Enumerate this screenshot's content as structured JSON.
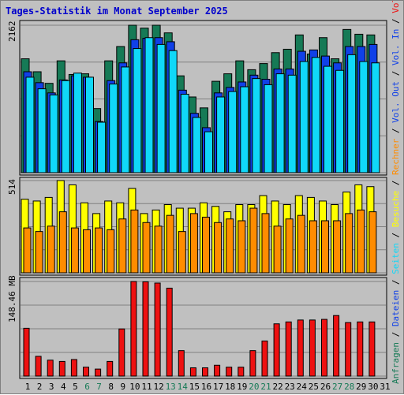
{
  "chart_data": [
    {
      "type": "bar",
      "title": "Tages-Statistik im Monat September 2025",
      "ylabel_top": "2162",
      "ymax": 2162,
      "categories": [
        "1",
        "2",
        "3",
        "4",
        "5",
        "6",
        "7",
        "8",
        "9",
        "10",
        "11",
        "12",
        "13",
        "14",
        "15",
        "16",
        "17",
        "18",
        "19",
        "20",
        "21",
        "22",
        "23",
        "24",
        "25",
        "26",
        "27",
        "28",
        "29",
        "30",
        "31"
      ],
      "weekend_days": [
        "6",
        "7",
        "13",
        "14",
        "20",
        "21",
        "27",
        "28"
      ],
      "series": [
        {
          "name": "Anfragen",
          "color": "#167a56",
          "values": [
            1670,
            1480,
            1310,
            1640,
            1440,
            1450,
            940,
            1640,
            1850,
            2162,
            2120,
            2162,
            2050,
            1420,
            1110,
            950,
            1340,
            1450,
            1640,
            1510,
            1600,
            1760,
            1810,
            2020,
            1740,
            1980,
            1670,
            2100,
            2030,
            2020,
            0
          ]
        },
        {
          "name": "Dateien",
          "color": "#1040e8",
          "values": [
            1480,
            1320,
            1170,
            1360,
            1420,
            1400,
            750,
            1350,
            1610,
            1950,
            1970,
            1980,
            1920,
            1210,
            870,
            660,
            1170,
            1250,
            1330,
            1430,
            1370,
            1520,
            1520,
            1780,
            1800,
            1710,
            1610,
            1850,
            1850,
            1880,
            0
          ]
        },
        {
          "name": "Seiten",
          "color": "#10d8f8",
          "values": [
            1400,
            1230,
            1140,
            1350,
            1460,
            1400,
            740,
            1300,
            1550,
            1820,
            1980,
            1880,
            1790,
            1150,
            810,
            600,
            1110,
            1190,
            1260,
            1380,
            1290,
            1450,
            1430,
            1630,
            1690,
            1560,
            1500,
            1730,
            1630,
            1610,
            0
          ]
        }
      ],
      "ylabel": "Anfragen / Dateien / Seiten"
    },
    {
      "type": "bar",
      "ylabel_top": "514",
      "ymax": 514,
      "categories": [
        "1",
        "2",
        "3",
        "4",
        "5",
        "6",
        "7",
        "8",
        "9",
        "10",
        "11",
        "12",
        "13",
        "14",
        "15",
        "16",
        "17",
        "18",
        "19",
        "20",
        "21",
        "22",
        "23",
        "24",
        "25",
        "26",
        "27",
        "28",
        "29",
        "30",
        "31"
      ],
      "series": [
        {
          "name": "Besuche",
          "color": "#ffff00",
          "values": [
            410,
            400,
            420,
            514,
            490,
            390,
            330,
            400,
            390,
            470,
            330,
            350,
            380,
            360,
            360,
            390,
            370,
            340,
            380,
            380,
            430,
            400,
            380,
            430,
            420,
            400,
            380,
            450,
            490,
            480,
            0
          ]
        },
        {
          "name": "Rechner",
          "color": "#ff8c00",
          "values": [
            250,
            230,
            260,
            340,
            250,
            240,
            250,
            240,
            300,
            350,
            280,
            260,
            320,
            230,
            330,
            310,
            280,
            300,
            290,
            360,
            330,
            260,
            300,
            320,
            290,
            290,
            290,
            330,
            350,
            340,
            0
          ]
        }
      ],
      "ylabel": "Besuche / Rechner"
    },
    {
      "type": "bar",
      "ylabel_top": "148.46 MB",
      "ymax": 148.46,
      "unit": "MB",
      "categories": [
        "1",
        "2",
        "3",
        "4",
        "5",
        "6",
        "7",
        "8",
        "9",
        "10",
        "11",
        "12",
        "13",
        "14",
        "15",
        "16",
        "17",
        "18",
        "19",
        "20",
        "21",
        "22",
        "23",
        "24",
        "25",
        "26",
        "27",
        "28",
        "29",
        "30",
        "31"
      ],
      "series": [
        {
          "name": "Volumen",
          "color": "#ee1111",
          "values": [
            75,
            31,
            25,
            23,
            26,
            14,
            11,
            23,
            74,
            148.46,
            148,
            146,
            138,
            40,
            13,
            13,
            17,
            14,
            14,
            40,
            55,
            82,
            85,
            88,
            88,
            89,
            95,
            84,
            85,
            85,
            0
          ]
        }
      ],
      "ylabel": "Volumen / Vol. In / Vol. Out"
    }
  ],
  "side_legend": [
    {
      "text": "Anfragen",
      "color": "#167a56"
    },
    {
      "text": " / ",
      "color": "#000000"
    },
    {
      "text": "Dateien",
      "color": "#1040e8"
    },
    {
      "text": " / ",
      "color": "#000000"
    },
    {
      "text": "Seiten",
      "color": "#10d8f8"
    },
    {
      "text": " / ",
      "color": "#000000"
    },
    {
      "text": "Besuche",
      "color": "#ffff00"
    },
    {
      "text": " / ",
      "color": "#000000"
    },
    {
      "text": "Rechner",
      "color": "#ff8c00"
    },
    {
      "text": " / ",
      "color": "#000000"
    },
    {
      "text": "Vol. Out",
      "color": "#1040e8"
    },
    {
      "text": " / ",
      "color": "#000000"
    },
    {
      "text": "Vol. In",
      "color": "#1040e8"
    },
    {
      "text": " / ",
      "color": "#000000"
    },
    {
      "text": "Volumen",
      "color": "#ee1111"
    }
  ],
  "colors": {
    "title": "#0000cc",
    "weekday_label": "#000000",
    "weekend_label": "#167a56",
    "panel_bg": "#c0c0c0"
  }
}
